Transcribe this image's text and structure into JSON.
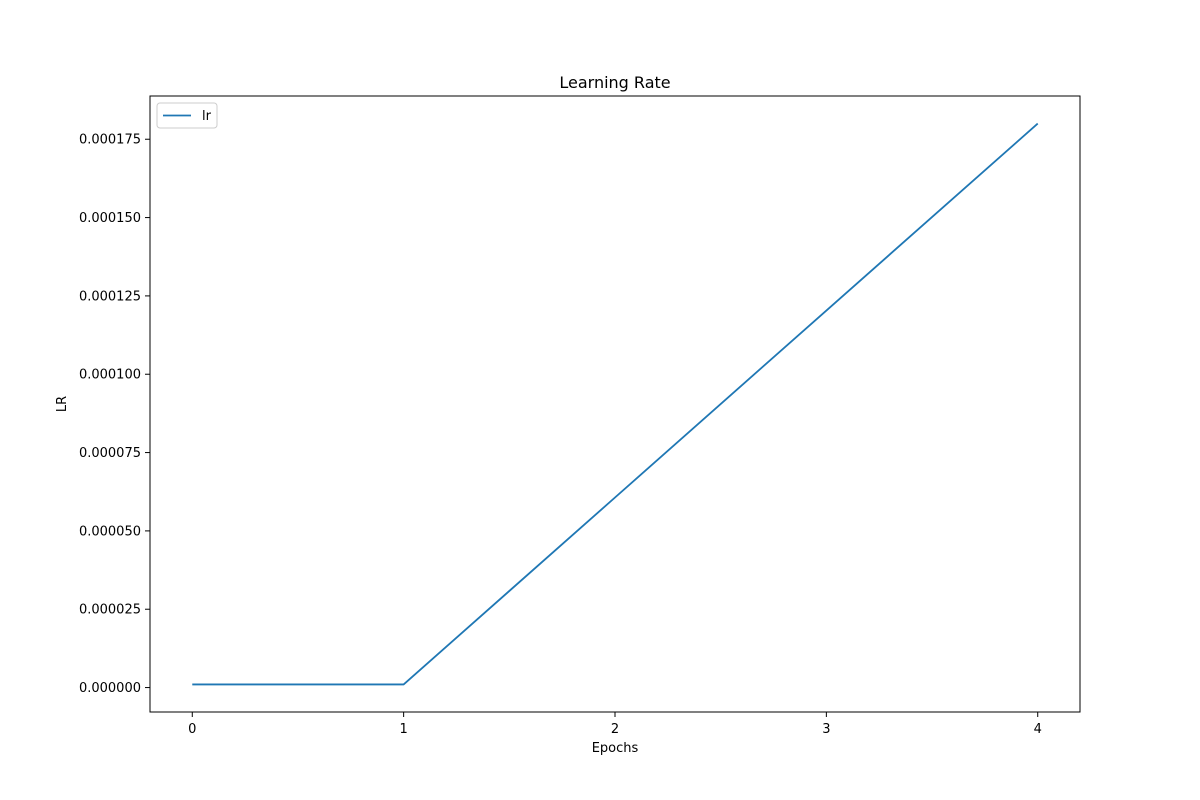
{
  "chart_data": {
    "type": "line",
    "title": "Learning Rate",
    "xlabel": "Epochs",
    "ylabel": "LR",
    "x": [
      0,
      1,
      2,
      3,
      4
    ],
    "xticks": [
      "0",
      "1",
      "2",
      "3",
      "4"
    ],
    "xlim": [
      -0.2,
      4.2
    ],
    "yticks": [
      "0.000000",
      "0.000025",
      "0.000050",
      "0.000075",
      "0.000100",
      "0.000125",
      "0.000150",
      "0.000175"
    ],
    "ytick_values": [
      0,
      2.5e-05,
      5e-05,
      7.5e-05,
      0.0001,
      0.000125,
      0.00015,
      0.000175
    ],
    "ylim": [
      -7.8e-06,
      0.0001888
    ],
    "grid": false,
    "legend_position": "top-left",
    "series": [
      {
        "name": "lr",
        "color": "#1f77b4",
        "values": [
          1e-06,
          1e-06,
          6.066e-05,
          0.00012033,
          0.00018
        ]
      }
    ]
  }
}
